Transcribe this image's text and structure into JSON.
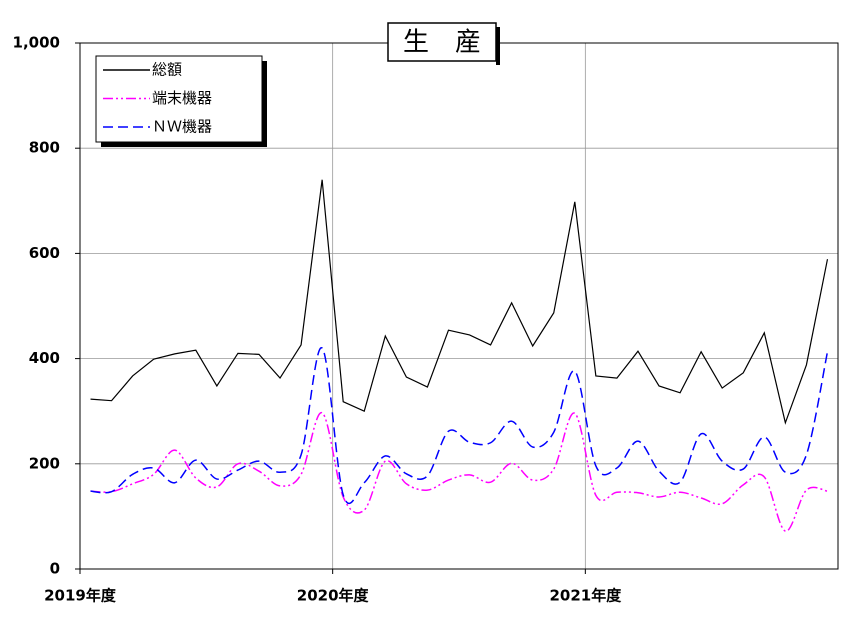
{
  "chart_data": {
    "type": "line",
    "title": "生　産",
    "categories": [
      "2019年度",
      null,
      null,
      null,
      null,
      null,
      null,
      null,
      null,
      null,
      null,
      null,
      "2020年度",
      null,
      null,
      null,
      null,
      null,
      null,
      null,
      null,
      null,
      null,
      null,
      "2021年度",
      null,
      null,
      null,
      null,
      null,
      null,
      null,
      null,
      null,
      null,
      null
    ],
    "series": [
      {
        "name": "総額",
        "color": "#000000",
        "line_style": "solid",
        "smooth": false,
        "values": [
          323,
          320,
          367,
          399,
          409,
          416,
          348,
          410,
          408,
          363,
          426,
          740,
          318,
          300,
          443,
          365,
          346,
          454,
          445,
          426,
          506,
          424,
          487,
          698,
          367,
          363,
          414,
          348,
          335,
          413,
          344,
          373,
          449,
          278,
          388,
          589
        ]
      },
      {
        "name": "端末機器",
        "color": "#ff00ff",
        "line_style": "dash-dot-dot",
        "smooth": true,
        "values": [
          148,
          147,
          162,
          180,
          226,
          173,
          156,
          200,
          186,
          158,
          180,
          297,
          137,
          112,
          205,
          162,
          150,
          169,
          179,
          165,
          201,
          169,
          190,
          296,
          140,
          146,
          145,
          137,
          146,
          135,
          124,
          160,
          175,
          72,
          150,
          148
        ]
      },
      {
        "name": "ＮＷ機器",
        "color": "#0000ff",
        "line_style": "dashed",
        "smooth": true,
        "values": [
          148,
          147,
          180,
          192,
          164,
          207,
          171,
          188,
          205,
          184,
          217,
          420,
          141,
          164,
          215,
          181,
          177,
          262,
          241,
          240,
          281,
          232,
          260,
          376,
          196,
          192,
          243,
          186,
          165,
          257,
          205,
          190,
          251,
          184,
          217,
          413
        ]
      }
    ],
    "ylim": [
      0,
      1000
    ],
    "yticks": [
      0,
      200,
      400,
      600,
      800,
      {
        "value": 1000,
        "label": "1,000"
      }
    ],
    "grid": true,
    "legend": "upper left"
  }
}
